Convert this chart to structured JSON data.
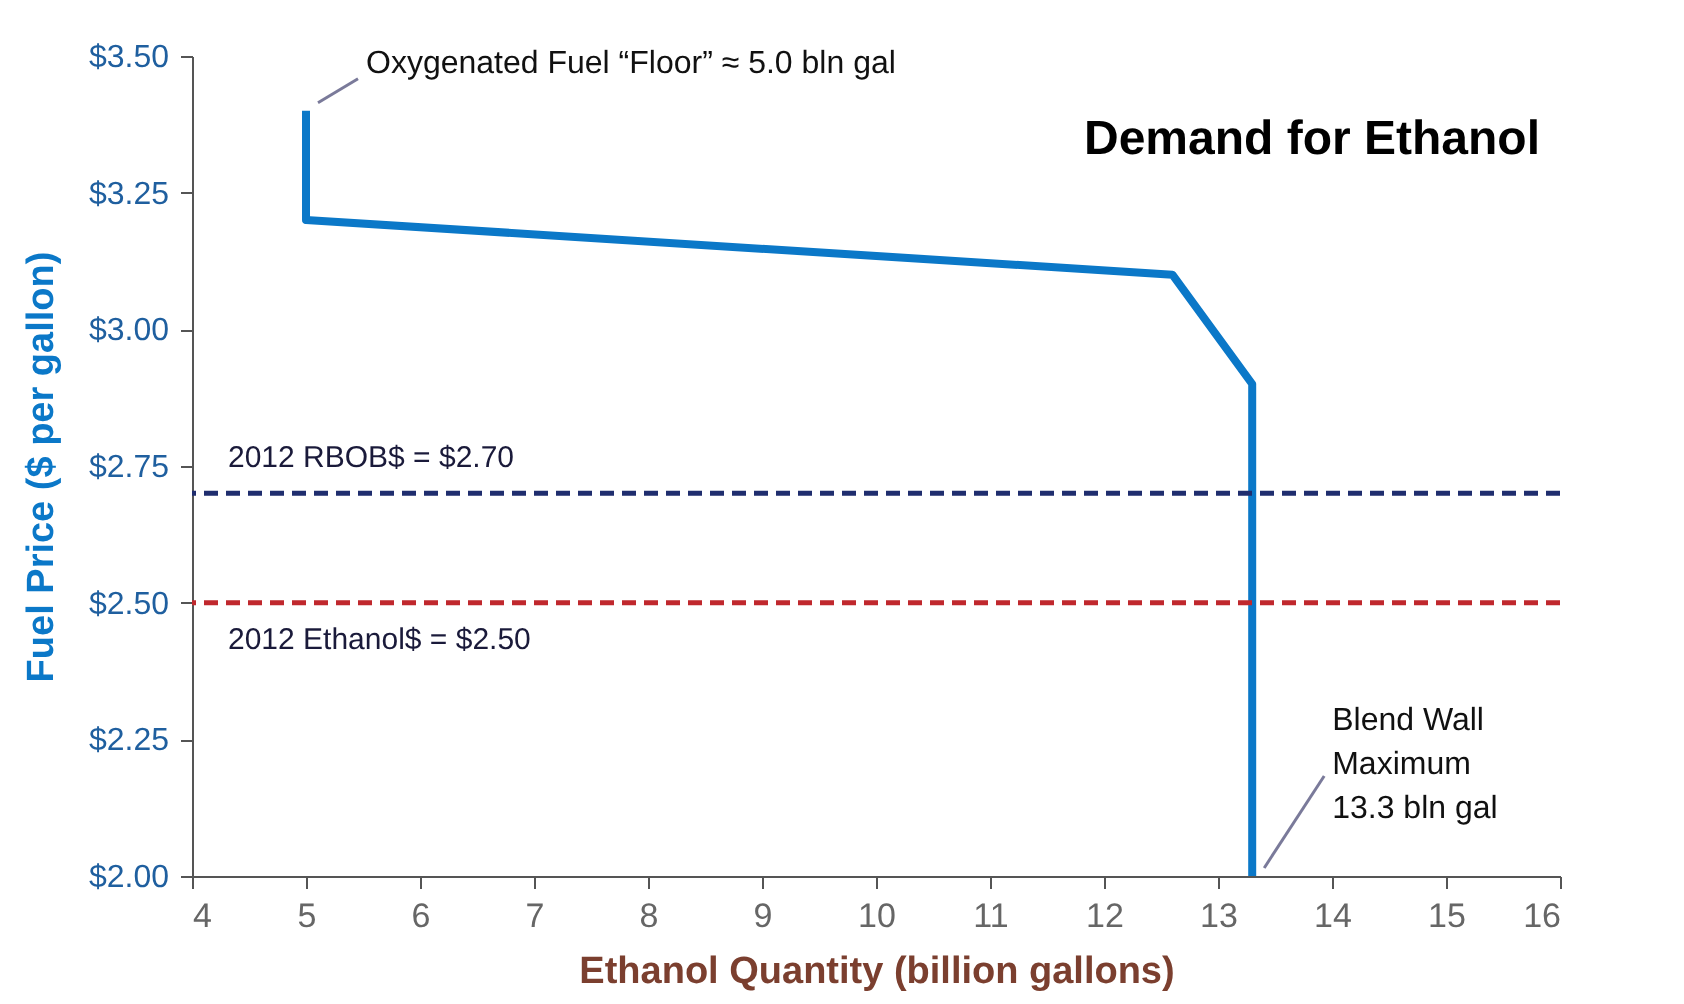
{
  "chart_data": {
    "type": "line",
    "title": "Demand for Ethanol",
    "xlabel": "Ethanol Quantity (billion gallons)",
    "ylabel": "Fuel Price ($ per gallon)",
    "series": [
      {
        "color": "#0b78c8",
        "x": [
          5,
          5,
          12.6,
          13.3,
          13.3
        ],
        "values": [
          3.4,
          3.2,
          3.1,
          2.9,
          2.0
        ]
      }
    ],
    "xlim": [
      4,
      16
    ],
    "xticks": [
      4,
      5,
      6,
      7,
      8,
      9,
      10,
      11,
      12,
      13,
      14,
      15,
      16
    ],
    "ylim": [
      2,
      3.5
    ],
    "yticks": [
      {
        "value": 2,
        "label": "$2.00"
      },
      {
        "value": 2.25,
        "label": "$2.25"
      },
      {
        "value": 2.5,
        "label": "$2.50"
      },
      {
        "value": 2.75,
        "label": "$2.75"
      },
      {
        "value": 3,
        "label": "$3.00"
      },
      {
        "value": 3.25,
        "label": "$3.25"
      },
      {
        "value": 3.5,
        "label": "$3.50"
      }
    ],
    "ref_lines": [
      {
        "axis": "y",
        "value": 2.7,
        "label": "2012  RBOB$ = $2.70",
        "color": "#1f2d6e",
        "line_style": "dashed"
      },
      {
        "axis": "y",
        "value": 2.5,
        "label": "2012  Ethanol$ = $2.50",
        "color": "#c0282d",
        "line_style": "dashed"
      }
    ],
    "annotations": [
      {
        "text": "Oxygenated Fuel “Floor” ≈ 5.0 bln gal",
        "x": 5,
        "y": 3.4
      },
      {
        "text": "Blend Wall\nMaximum\n13.3 bln gal",
        "x": 13.3,
        "y": 2.0
      }
    ],
    "grid": false,
    "marker": "none",
    "line_style": "solid"
  }
}
